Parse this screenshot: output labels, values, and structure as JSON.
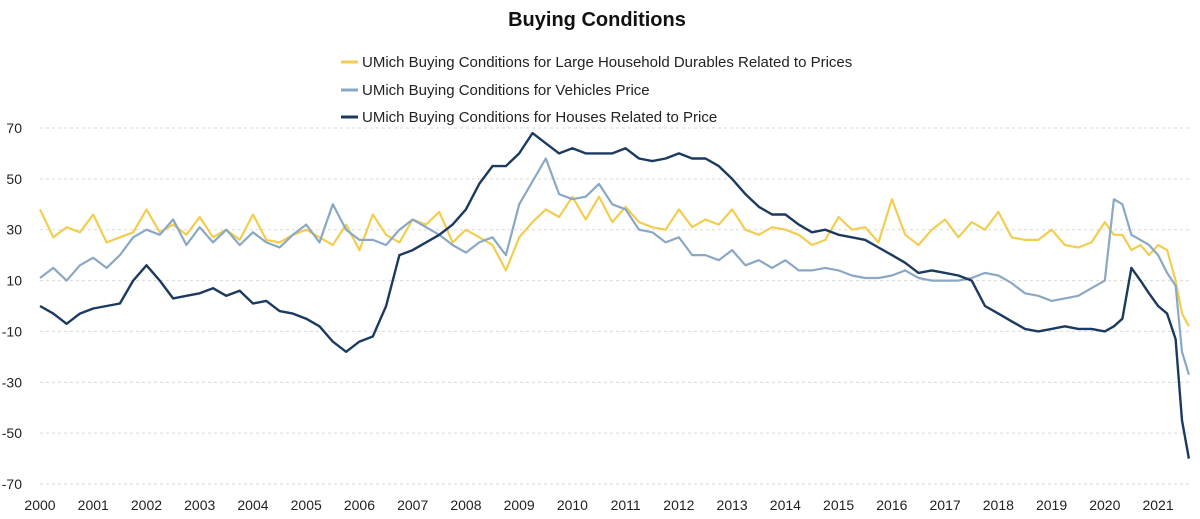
{
  "chart_data": {
    "type": "line",
    "title": "Buying Conditions",
    "xlabel": "",
    "ylabel": "",
    "xlim": [
      2000,
      2021.6
    ],
    "ylim": [
      -70,
      70
    ],
    "grid": "horizontal dashed",
    "legend_position": "top-center",
    "y_ticks": [
      "70",
      "50",
      "30",
      "10",
      "-10",
      "-30",
      "-50",
      "-70"
    ],
    "x_ticks": [
      "2000",
      "2001",
      "2002",
      "2003",
      "2004",
      "2005",
      "2006",
      "2007",
      "2008",
      "2009",
      "2010",
      "2011",
      "2012",
      "2013",
      "2014",
      "2015",
      "2016",
      "2017",
      "2018",
      "2019",
      "2020",
      "2021"
    ],
    "x": [
      2000.0,
      2000.25,
      2000.5,
      2000.75,
      2001.0,
      2001.25,
      2001.5,
      2001.75,
      2002.0,
      2002.25,
      2002.5,
      2002.75,
      2003.0,
      2003.25,
      2003.5,
      2003.75,
      2004.0,
      2004.25,
      2004.5,
      2004.75,
      2005.0,
      2005.25,
      2005.5,
      2005.75,
      2006.0,
      2006.25,
      2006.5,
      2006.75,
      2007.0,
      2007.25,
      2007.5,
      2007.75,
      2008.0,
      2008.25,
      2008.5,
      2008.75,
      2009.0,
      2009.25,
      2009.5,
      2009.75,
      2010.0,
      2010.25,
      2010.5,
      2010.75,
      2011.0,
      2011.25,
      2011.5,
      2011.75,
      2012.0,
      2012.25,
      2012.5,
      2012.75,
      2013.0,
      2013.25,
      2013.5,
      2013.75,
      2014.0,
      2014.25,
      2014.5,
      2014.75,
      2015.0,
      2015.25,
      2015.5,
      2015.75,
      2016.0,
      2016.25,
      2016.5,
      2016.75,
      2017.0,
      2017.25,
      2017.5,
      2017.75,
      2018.0,
      2018.25,
      2018.5,
      2018.75,
      2019.0,
      2019.25,
      2019.5,
      2019.75,
      2020.0,
      2020.17,
      2020.33,
      2020.5,
      2020.67,
      2020.83,
      2021.0,
      2021.17,
      2021.33,
      2021.45,
      2021.58
    ],
    "series": [
      {
        "name": "UMich Buying Conditions for Large Household Durables Related to Prices",
        "color": "#f2cd4f",
        "values": [
          38,
          27,
          31,
          29,
          36,
          25,
          27,
          29,
          38,
          29,
          32,
          28,
          35,
          27,
          30,
          26,
          36,
          26,
          25,
          28,
          30,
          27,
          24,
          32,
          22,
          36,
          28,
          25,
          34,
          32,
          37,
          25,
          30,
          27,
          24,
          14,
          27,
          33,
          38,
          35,
          43,
          34,
          43,
          33,
          39,
          33,
          31,
          30,
          38,
          31,
          34,
          32,
          38,
          30,
          28,
          31,
          30,
          28,
          24,
          26,
          35,
          30,
          31,
          25,
          42,
          28,
          24,
          30,
          34,
          27,
          33,
          30,
          37,
          27,
          26,
          26,
          30,
          24,
          23,
          25,
          33,
          28,
          28,
          22,
          24,
          20,
          24,
          22,
          10,
          -3,
          -8
        ]
      },
      {
        "name": "UMich Buying Conditions for Vehicles Price",
        "color": "#8aa8c4",
        "values": [
          11,
          15,
          10,
          16,
          19,
          15,
          20,
          27,
          30,
          28,
          34,
          24,
          31,
          25,
          30,
          24,
          29,
          25,
          23,
          28,
          32,
          25,
          40,
          30,
          26,
          26,
          24,
          30,
          34,
          31,
          28,
          24,
          21,
          25,
          27,
          20,
          40,
          49,
          58,
          44,
          42,
          43,
          48,
          40,
          38,
          30,
          29,
          25,
          27,
          20,
          20,
          18,
          22,
          16,
          18,
          15,
          18,
          14,
          14,
          15,
          14,
          12,
          11,
          11,
          12,
          14,
          11,
          10,
          10,
          10,
          11,
          13,
          12,
          9,
          5,
          4,
          2,
          3,
          4,
          7,
          10,
          42,
          40,
          28,
          26,
          24,
          20,
          13,
          8,
          -18,
          -27
        ]
      },
      {
        "name": "UMich Buying Conditions for Houses Related to Price",
        "color": "#1b3a60",
        "values": [
          0,
          -3,
          -7,
          -3,
          -1,
          0,
          1,
          10,
          16,
          10,
          3,
          4,
          5,
          7,
          4,
          6,
          1,
          2,
          -2,
          -3,
          -5,
          -8,
          -14,
          -18,
          -14,
          -12,
          0,
          20,
          22,
          25,
          28,
          32,
          38,
          48,
          55,
          55,
          60,
          68,
          64,
          60,
          62,
          60,
          60,
          60,
          62,
          58,
          57,
          58,
          60,
          58,
          58,
          55,
          50,
          44,
          39,
          36,
          36,
          32,
          29,
          30,
          28,
          27,
          26,
          23,
          20,
          17,
          13,
          14,
          13,
          12,
          10,
          0,
          -3,
          -6,
          -9,
          -10,
          -9,
          -8,
          -9,
          -9,
          -10,
          -8,
          -5,
          15,
          10,
          5,
          0,
          -3,
          -13,
          -45,
          -60
        ]
      }
    ]
  }
}
